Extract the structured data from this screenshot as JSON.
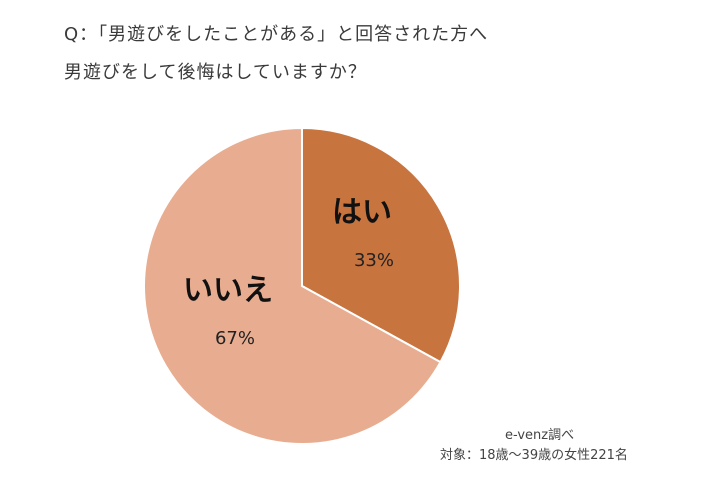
{
  "question": {
    "line1": "Q：「男遊びをしたことがある」と回答された方へ",
    "line2": "男遊びをして後悔はしていますか？"
  },
  "chart_data": {
    "type": "pie",
    "categories": [
      "はい",
      "いいえ"
    ],
    "values": [
      33,
      67
    ],
    "labels": [
      "33%",
      "67%"
    ],
    "colors": [
      "#c8743f",
      "#e8ad90"
    ]
  },
  "notes": {
    "source": "e-venz調べ",
    "target": "対象：18歳〜39歳の女性221名"
  }
}
